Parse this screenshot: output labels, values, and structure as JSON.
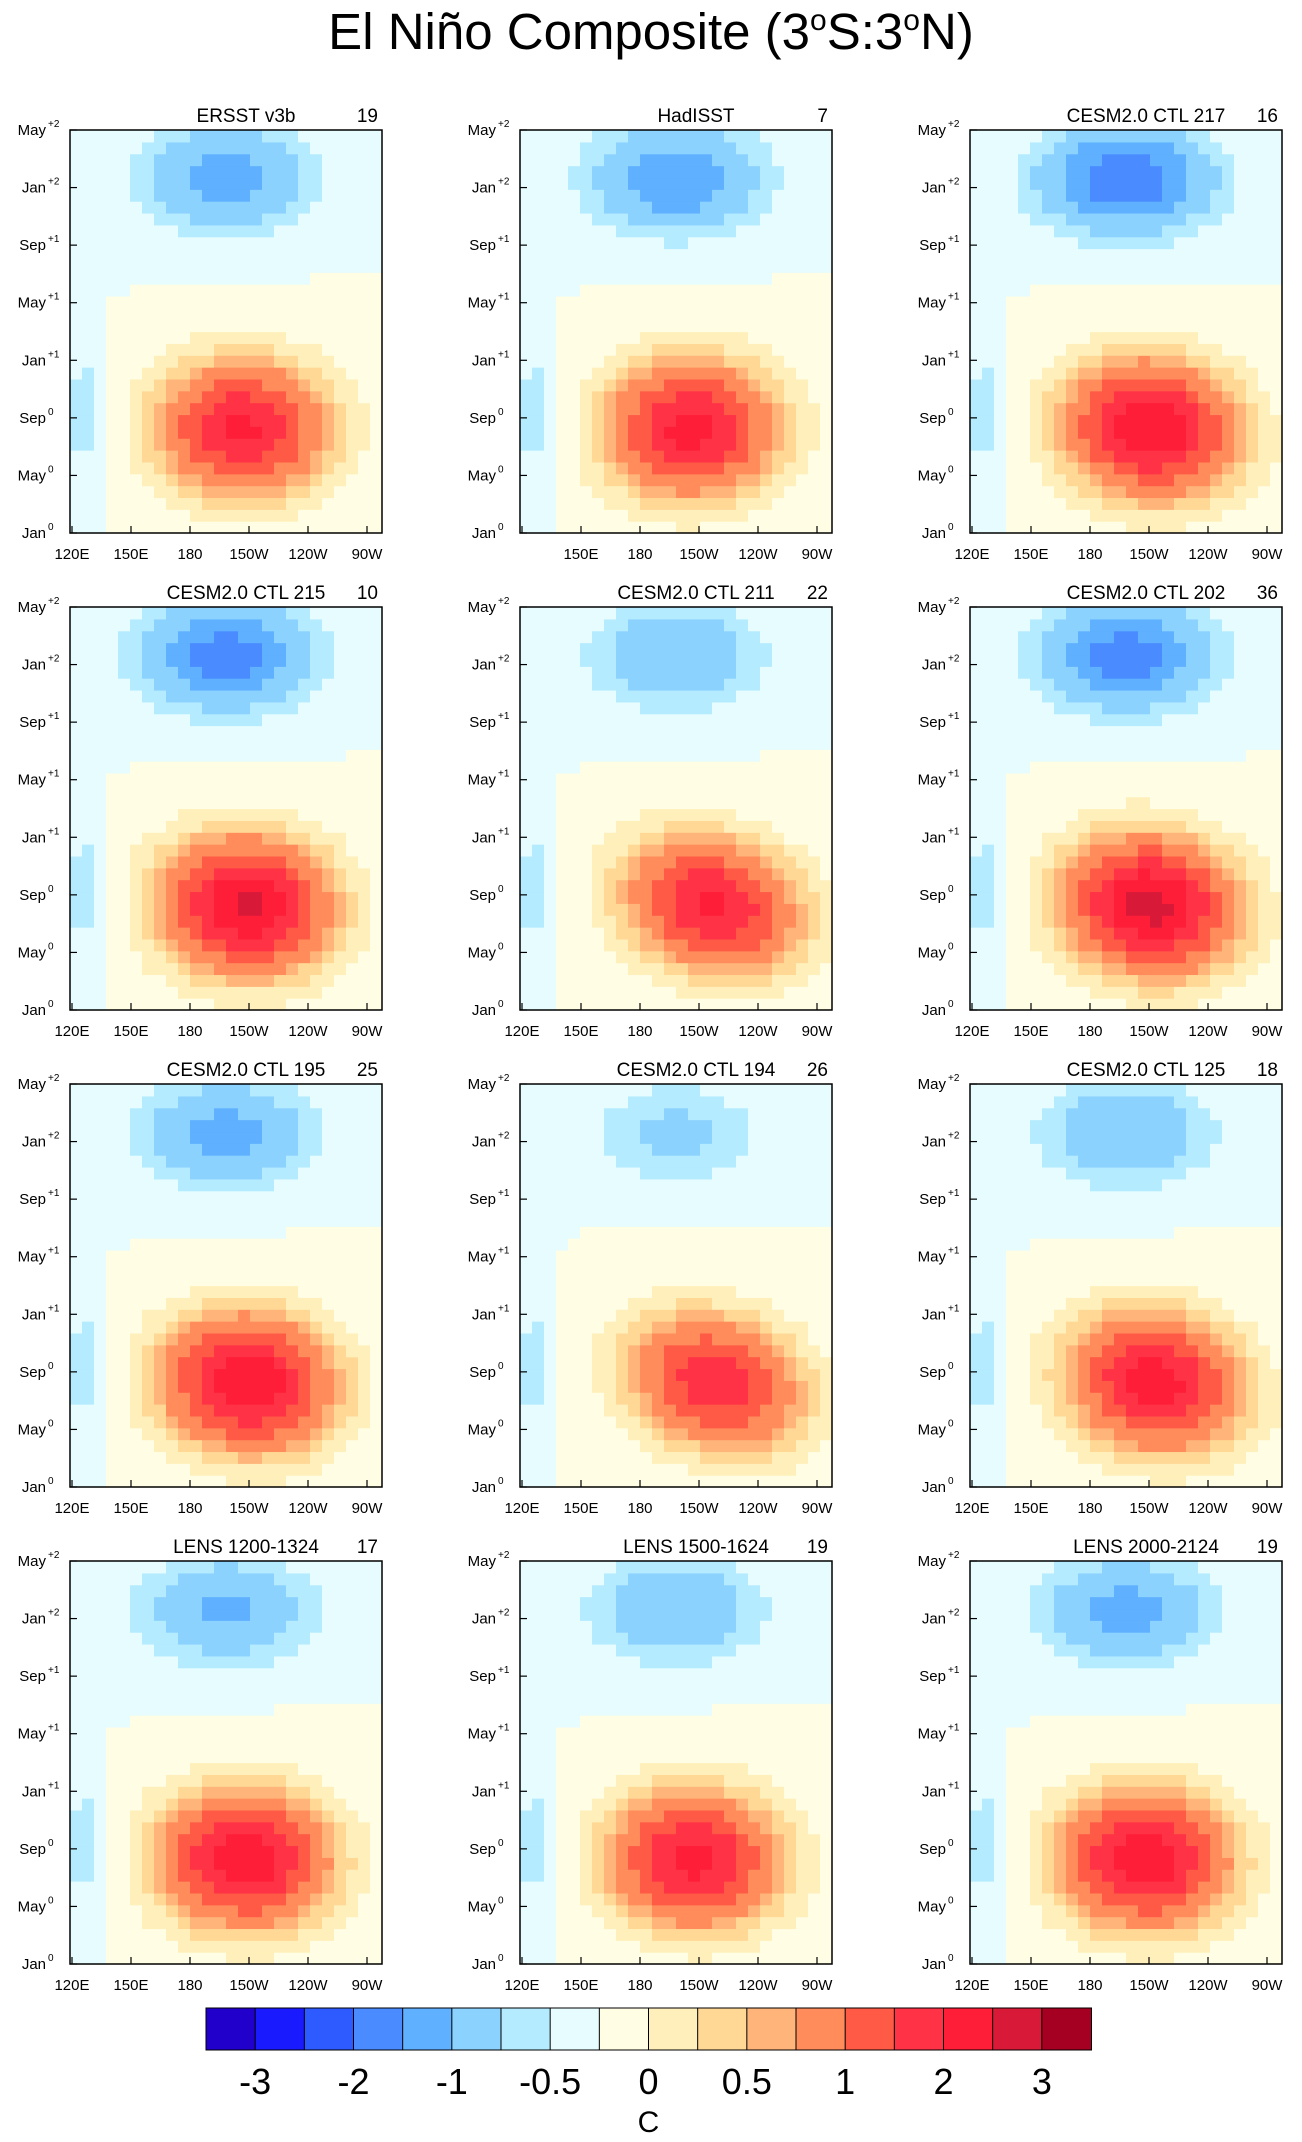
{
  "title": {
    "main": "El Niño Composite (3",
    "deg1": "o",
    "mid": "S:3",
    "deg2": "o",
    "end": "N)"
  },
  "chart_data": {
    "type": "heatmap",
    "description_units": "SST anomaly (C), longitude vs lag month, 3S:3N",
    "x_tick_labels": [
      "120E",
      "150E",
      "180",
      "150W",
      "120W",
      "90W"
    ],
    "y_tick_labels": [
      {
        "base": "Jan",
        "sup": "0"
      },
      {
        "base": "May",
        "sup": "0"
      },
      {
        "base": "Sep",
        "sup": "0"
      },
      {
        "base": "Jan",
        "sup": "+1"
      },
      {
        "base": "May",
        "sup": "+1"
      },
      {
        "base": "Sep",
        "sup": "+1"
      },
      {
        "base": "Jan",
        "sup": "+2"
      },
      {
        "base": "May",
        "sup": "+2"
      }
    ],
    "colorbar": {
      "unit": "C",
      "labels": [
        "-3",
        "-2",
        "-1",
        "-0.5",
        "0",
        "0.5",
        "1",
        "2",
        "3"
      ],
      "colors": [
        "#2200cc",
        "#1a1aff",
        "#2e5bff",
        "#4a8cff",
        "#5fb0ff",
        "#8cd2ff",
        "#b4ebff",
        "#e6fcff",
        "#fffde4",
        "#fff0bb",
        "#ffd896",
        "#ffb47a",
        "#ff8c5a",
        "#ff5a46",
        "#ff3246",
        "#ff1e38",
        "#d81a38",
        "#a50021"
      ]
    },
    "panels": [
      {
        "title": "ERSST v3b",
        "count": "19",
        "warm": 2.6,
        "cold": -1.3,
        "tilt": 0.02
      },
      {
        "title": "HadISST",
        "count": "7",
        "warm": 2.7,
        "cold": -1.5,
        "tilt": 0.0
      },
      {
        "title": "CESM2.0 CTL 217",
        "count": "16",
        "warm": 3.0,
        "cold": -2.0,
        "tilt": 0.12
      },
      {
        "title": "CESM2.0 CTL 215",
        "count": "10",
        "warm": 3.1,
        "cold": -1.8,
        "tilt": 0.06
      },
      {
        "title": "CESM2.0 CTL 211",
        "count": "22",
        "warm": 2.6,
        "cold": -1.0,
        "tilt": 0.28
      },
      {
        "title": "CESM2.0 CTL 202",
        "count": "36",
        "warm": 3.2,
        "cold": -1.8,
        "tilt": 0.12
      },
      {
        "title": "CESM2.0 CTL 195",
        "count": "25",
        "warm": 3.0,
        "cold": -1.2,
        "tilt": 0.08
      },
      {
        "title": "CESM2.0 CTL 194",
        "count": "26",
        "warm": 2.4,
        "cold": -0.6,
        "tilt": 0.32
      },
      {
        "title": "CESM2.0 CTL 125",
        "count": "18",
        "warm": 2.8,
        "cold": -1.0,
        "tilt": 0.18
      },
      {
        "title": "LENS 1200-1324",
        "count": "17",
        "warm": 2.9,
        "cold": -1.1,
        "tilt": 0.04
      },
      {
        "title": "LENS 1500-1624",
        "count": "19",
        "warm": 2.7,
        "cold": -1.0,
        "tilt": 0.03
      },
      {
        "title": "LENS 2000-2124",
        "count": "19",
        "warm": 2.9,
        "cold": -1.2,
        "tilt": 0.04
      }
    ]
  }
}
